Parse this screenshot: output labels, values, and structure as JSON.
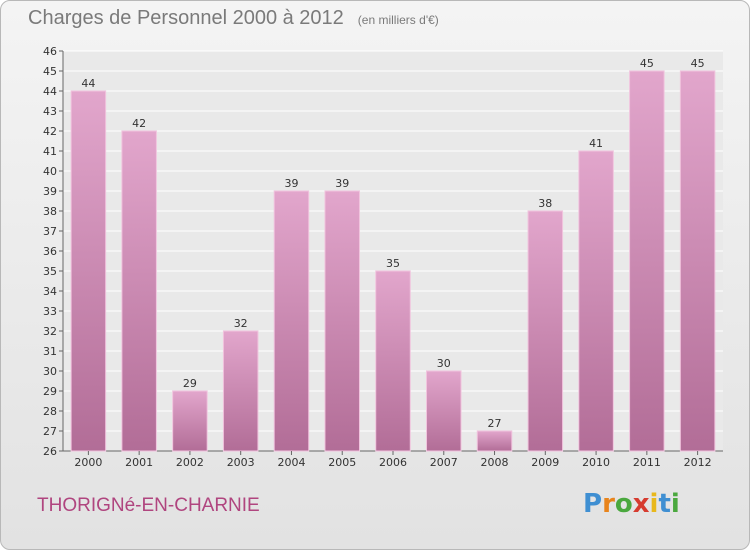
{
  "chart_data": {
    "type": "bar",
    "title": "Charges de Personnel 2000 à 2012",
    "subtitle": "(en milliers d'€)",
    "categories": [
      "2000",
      "2001",
      "2002",
      "2003",
      "2004",
      "2005",
      "2006",
      "2007",
      "2008",
      "2009",
      "2010",
      "2011",
      "2012"
    ],
    "values": [
      44,
      42,
      29,
      32,
      39,
      39,
      35,
      30,
      27,
      38,
      41,
      45,
      45
    ],
    "ylim": [
      26,
      46
    ],
    "yticks": [
      26,
      27,
      28,
      29,
      30,
      31,
      32,
      33,
      34,
      35,
      36,
      37,
      38,
      39,
      40,
      41,
      42,
      43,
      44,
      45,
      46
    ],
    "grid": true,
    "bar_color": "#d690bb",
    "xlabel": "",
    "ylabel": ""
  },
  "footer": {
    "commune": "THORIGNé-EN-CHARNIE",
    "logo_letters": [
      "P",
      "r",
      "o",
      "x",
      "i",
      "t",
      "i"
    ],
    "logo_colors": [
      "#3f8fd2",
      "#e8841c",
      "#4aa83e",
      "#d63b2f",
      "#e8b81c",
      "#3f8fd2",
      "#4aa83e"
    ]
  }
}
